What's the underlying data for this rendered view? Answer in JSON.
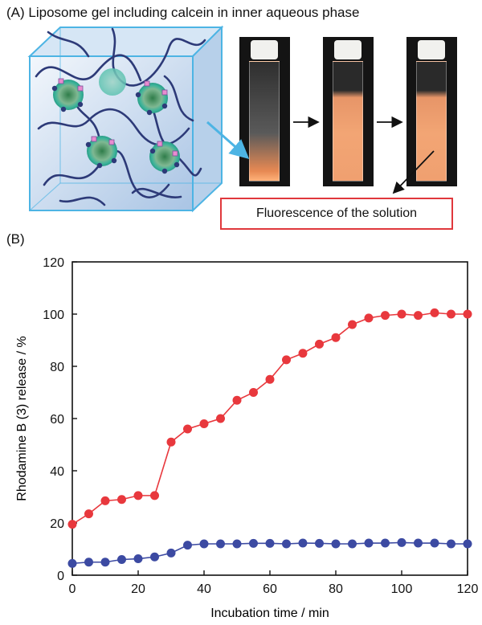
{
  "panel_a": {
    "label": "(A) Liposome gel including calcein in inner aqueous phase",
    "fluorescence_label": "Fluorescence of the solution"
  },
  "panel_b": {
    "label": "(B)"
  },
  "colors": {
    "series_red": "#e8383d",
    "series_blue": "#3c4aa2",
    "red_box": "#e0383c",
    "cube_edge": "#4db4e4",
    "liposome_ring": "#3bb39a",
    "orange_fluorescence": "#f0a070"
  },
  "chart_data": {
    "type": "line",
    "xlabel": "Incubation time / min",
    "ylabel": "Rhodamine B (3) release / %",
    "xlim": [
      0,
      120
    ],
    "ylim": [
      0,
      120
    ],
    "xticks": [
      0,
      20,
      40,
      60,
      80,
      100,
      120
    ],
    "yticks": [
      0,
      20,
      40,
      60,
      80,
      100,
      120
    ],
    "grid": false,
    "series": [
      {
        "color": "#e8383d",
        "x": [
          0,
          5,
          10,
          15,
          20,
          25,
          30,
          35,
          40,
          45,
          50,
          55,
          60,
          65,
          70,
          75,
          80,
          85,
          90,
          95,
          100,
          105,
          110,
          115,
          120
        ],
        "y": [
          19.5,
          23.5,
          28.5,
          29,
          30.5,
          30.5,
          51,
          56,
          58,
          60,
          67,
          70,
          75,
          82.5,
          85,
          88.5,
          91,
          96,
          98.5,
          99.5,
          100,
          99.5,
          100.5,
          100,
          100
        ]
      },
      {
        "color": "#3c4aa2",
        "x": [
          0,
          5,
          10,
          15,
          20,
          25,
          30,
          35,
          40,
          45,
          50,
          55,
          60,
          65,
          70,
          75,
          80,
          85,
          90,
          95,
          100,
          105,
          110,
          115,
          120
        ],
        "y": [
          4.5,
          5,
          5,
          6,
          6.3,
          7,
          8.5,
          11.5,
          12,
          12,
          12,
          12.2,
          12.2,
          12,
          12.3,
          12.2,
          12,
          12,
          12.3,
          12.3,
          12.5,
          12.3,
          12.3,
          12,
          12
        ]
      }
    ]
  }
}
